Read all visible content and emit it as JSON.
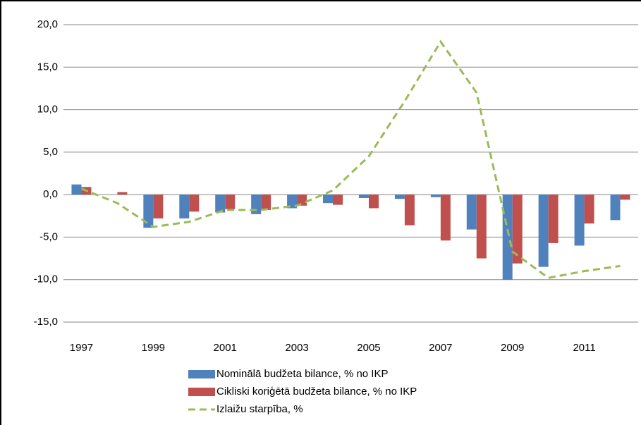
{
  "chart_data": {
    "type": "bar-line",
    "categories": [
      "1997",
      null,
      "1999",
      null,
      "2001",
      null,
      "2003",
      null,
      "2005",
      null,
      "2007",
      null,
      "2009",
      null,
      "2011",
      null
    ],
    "series": [
      {
        "name": "Nominālā budžeta bilance, % no IKP",
        "type": "bar",
        "color": "#4f81bd",
        "values": [
          1.2,
          0,
          -3.9,
          -2.8,
          -2.1,
          -2.3,
          -1.6,
          -1.0,
          -0.4,
          -0.5,
          -0.3,
          -4.1,
          -10.0,
          -8.5,
          -6.0,
          -3.0
        ]
      },
      {
        "name": "Cikliski koriģētā budžeta bilance, % no IKP",
        "type": "bar",
        "color": "#c0504d",
        "values": [
          0.9,
          0.3,
          -2.8,
          -2.0,
          -1.7,
          -1.8,
          -1.3,
          -1.2,
          -1.6,
          -3.6,
          -5.4,
          -7.5,
          -8.1,
          -5.7,
          -3.4,
          -0.6
        ]
      },
      {
        "name": "Izlaižu starpība, %",
        "type": "line",
        "color": "#9bbb59",
        "values": [
          0.7,
          -1.0,
          -3.8,
          -3.2,
          -1.8,
          -1.8,
          -1.3,
          0.5,
          4.5,
          11.0,
          18.0,
          12.0,
          -6.7,
          -9.8,
          -9.0,
          -8.4
        ]
      }
    ],
    "ylim": [
      -15,
      20
    ],
    "yticks": [
      {
        "value": -15,
        "label": "-15,0"
      },
      {
        "value": -10,
        "label": "-10,0"
      },
      {
        "value": -5,
        "label": "-5,0"
      },
      {
        "value": 0,
        "label": "0,0"
      },
      {
        "value": 5,
        "label": "5,0"
      },
      {
        "value": 10,
        "label": "10,0"
      },
      {
        "value": 15,
        "label": "15,0"
      },
      {
        "value": 20,
        "label": "20,0"
      }
    ],
    "grid": true,
    "legend": "bottom"
  }
}
